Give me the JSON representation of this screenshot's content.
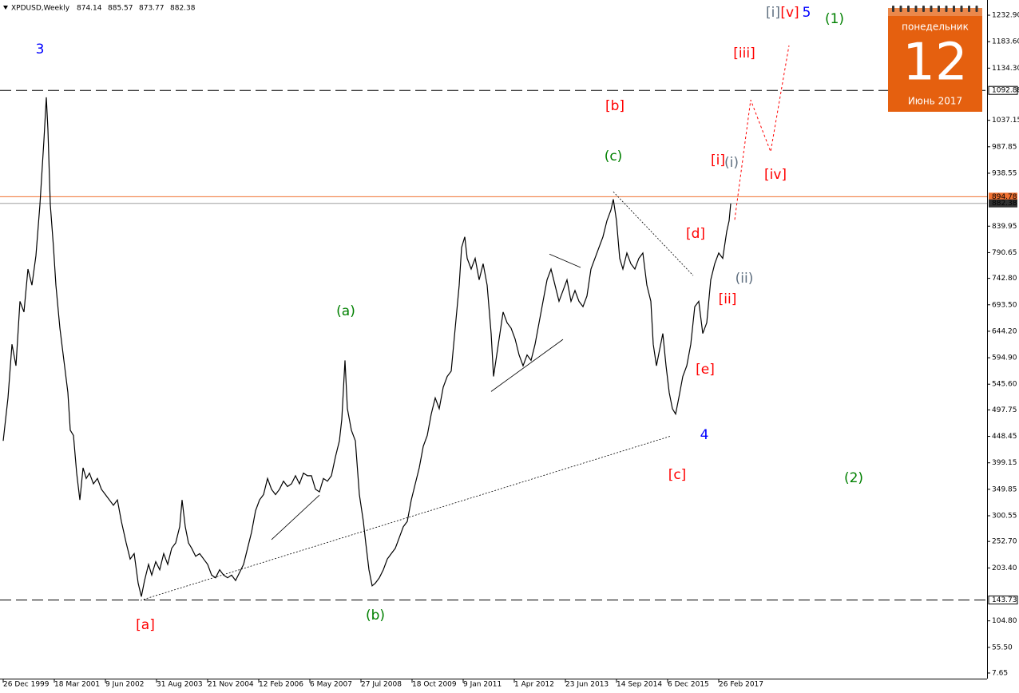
{
  "chart_data": {
    "type": "line",
    "title": "XPDUSD,Weekly",
    "quote": [
      874.14,
      885.57,
      873.77,
      882.38
    ],
    "xlim": [
      -4,
      1232
    ],
    "ylim": [
      -2.8,
      1261.2
    ],
    "xticks": [
      {
        "value": 0,
        "label": "26 Dec 1999"
      },
      {
        "value": 64,
        "label": "18 Mar 2001"
      },
      {
        "value": 128,
        "label": "9 Jun 2002"
      },
      {
        "value": 192,
        "label": "31 Aug 2003"
      },
      {
        "value": 256,
        "label": "21 Nov 2004"
      },
      {
        "value": 320,
        "label": "12 Feb 2006"
      },
      {
        "value": 384,
        "label": "6 May 2007"
      },
      {
        "value": 448,
        "label": "27 Jul 2008"
      },
      {
        "value": 512,
        "label": "18 Oct 2009"
      },
      {
        "value": 576,
        "label": "9 Jan 2011"
      },
      {
        "value": 640,
        "label": "1 Apr 2012"
      },
      {
        "value": 704,
        "label": "23 Jun 2013"
      },
      {
        "value": 768,
        "label": "14 Sep 2014"
      },
      {
        "value": 832,
        "label": "6 Dec 2015"
      },
      {
        "value": 896,
        "label": "26 Feb 2017"
      }
    ],
    "yticks": [
      {
        "value": 1232.9,
        "label": "1232.90"
      },
      {
        "value": 1183.6,
        "label": "1183.60"
      },
      {
        "value": 1134.3,
        "label": "1134.30"
      },
      1037.15,
      987.85,
      938.55,
      839.95,
      790.65,
      {
        "value": 742.8,
        "label": "742.80"
      },
      {
        "value": 693.5,
        "label": "693.50"
      },
      {
        "value": 644.2,
        "label": "644.20"
      },
      {
        "value": 594.9,
        "label": "594.90"
      },
      {
        "value": 545.6,
        "label": "545.60"
      },
      497.75,
      448.45,
      399.15,
      349.85,
      300.55,
      {
        "value": 252.7,
        "label": "252.70"
      },
      {
        "value": 203.4,
        "label": "203.40"
      },
      {
        "value": 104.8,
        "label": "104.80"
      },
      {
        "value": 55.5,
        "label": "55.50"
      },
      7.65
    ],
    "series": [
      {
        "color": "#000000",
        "x": [
          0,
          6,
          11,
          16,
          21,
          26,
          31,
          36,
          41,
          46,
          51,
          54,
          56,
          59,
          63,
          66,
          71,
          76,
          81,
          84,
          88,
          92,
          96,
          100,
          104,
          108,
          113,
          118,
          123,
          128,
          133,
          138,
          143,
          148,
          154,
          159,
          164,
          169,
          173,
          177,
          182,
          186,
          191,
          196,
          201,
          206,
          211,
          216,
          221,
          224,
          228,
          232,
          236,
          241,
          246,
          251,
          256,
          261,
          266,
          271,
          276,
          281,
          286,
          291,
          296,
          301,
          306,
          311,
          316,
          321,
          326,
          331,
          336,
          341,
          346,
          351,
          356,
          361,
          366,
          371,
          376,
          381,
          386,
          391,
          396,
          401,
          406,
          411,
          416,
          421,
          424,
          428,
          431,
          436,
          441,
          446,
          451,
          454,
          458,
          462,
          466,
          471,
          476,
          481,
          486,
          491,
          496,
          501,
          506,
          511,
          516,
          521,
          526,
          531,
          536,
          541,
          546,
          551,
          556,
          561,
          566,
          571,
          574,
          578,
          581,
          586,
          591,
          596,
          601,
          606,
          611,
          614,
          618,
          622,
          626,
          631,
          636,
          641,
          646,
          651,
          656,
          661,
          666,
          671,
          676,
          681,
          686,
          691,
          696,
          701,
          706,
          711,
          716,
          721,
          726,
          731,
          736,
          741,
          746,
          751,
          756,
          761,
          764,
          768,
          772,
          776,
          781,
          786,
          791,
          796,
          801,
          806,
          811,
          814,
          818,
          822,
          826,
          830,
          834,
          838,
          842,
          846,
          851,
          856,
          861,
          866,
          871,
          876,
          881,
          886,
          891,
          896,
          901,
          906,
          909,
          911
        ],
        "values": [
          440,
          520,
          620,
          580,
          700,
          680,
          760,
          730,
          785,
          880,
          1000,
          1080,
          1020,
          880,
          800,
          730,
          650,
          590,
          530,
          460,
          450,
          380,
          330,
          390,
          370,
          380,
          360,
          370,
          350,
          340,
          330,
          320,
          330,
          290,
          250,
          220,
          230,
          175,
          150,
          180,
          210,
          190,
          215,
          200,
          230,
          210,
          240,
          250,
          280,
          330,
          280,
          250,
          240,
          225,
          230,
          220,
          210,
          190,
          185,
          200,
          190,
          185,
          190,
          180,
          195,
          210,
          240,
          270,
          310,
          330,
          340,
          370,
          350,
          340,
          350,
          365,
          355,
          360,
          375,
          360,
          380,
          375,
          375,
          350,
          345,
          370,
          365,
          375,
          410,
          440,
          480,
          590,
          500,
          460,
          440,
          340,
          290,
          250,
          200,
          170,
          175,
          185,
          200,
          220,
          230,
          240,
          260,
          280,
          290,
          330,
          360,
          390,
          430,
          450,
          490,
          520,
          500,
          540,
          560,
          570,
          650,
          730,
          800,
          820,
          780,
          760,
          780,
          740,
          770,
          730,
          640,
          560,
          600,
          640,
          680,
          660,
          650,
          630,
          600,
          580,
          600,
          590,
          620,
          660,
          700,
          740,
          760,
          730,
          700,
          720,
          740,
          700,
          720,
          700,
          690,
          710,
          760,
          780,
          800,
          820,
          850,
          870,
          890,
          850,
          780,
          760,
          790,
          770,
          760,
          780,
          790,
          730,
          700,
          620,
          580,
          610,
          640,
          580,
          530,
          500,
          490,
          520,
          560,
          580,
          620,
          690,
          700,
          640,
          660,
          740,
          770,
          790,
          780,
          830,
          850,
          882
        ]
      },
      {
        "color": "#ff0000",
        "dashed": true,
        "x": [
          916,
          936,
          961,
          984
        ],
        "values": [
          852,
          1075,
          978.6,
          1176.4
        ]
      }
    ],
    "levels": [
      {
        "value": 1092.88,
        "color": "#000000",
        "style": "dashed"
      },
      {
        "value": 894.78,
        "color": "#f07030",
        "style": "solid"
      },
      {
        "value": 882.38,
        "color": "#a0a0a0",
        "style": "solid"
      },
      {
        "value": 143.73,
        "color": "#000000",
        "style": "dashed"
      }
    ],
    "trendlines": [
      {
        "x": [
          172,
          836
        ],
        "values": [
          143,
          449
        ],
        "style": "dotted"
      },
      {
        "x": [
          764,
          864
        ],
        "values": [
          904,
          748
        ],
        "style": "dotted"
      },
      {
        "x": [
          336,
          396
        ],
        "values": [
          256,
          339
        ],
        "style": "solid"
      },
      {
        "x": [
          611,
          701
        ],
        "values": [
          532,
          629
        ],
        "style": "solid"
      },
      {
        "x": [
          684,
          723
        ],
        "values": [
          788,
          763
        ],
        "style": "solid"
      }
    ],
    "wave_labels": [
      {
        "text": "3",
        "color": "#0000ff"
      },
      {
        "text": "[a]",
        "color": "#ff0000"
      },
      {
        "text": "(a)",
        "color": "#008000"
      },
      {
        "text": "(b)",
        "color": "#008000"
      },
      {
        "text": "[b]",
        "color": "#ff0000"
      },
      {
        "text": "(c)",
        "color": "#008000"
      },
      {
        "text": "[c]",
        "color": "#ff0000"
      },
      {
        "text": "4",
        "color": "#0000ff"
      },
      {
        "text": "[d]",
        "color": "#ff0000"
      },
      {
        "text": "[e]",
        "color": "#ff0000"
      },
      {
        "text": "[i]",
        "color": "#ff0000"
      },
      {
        "text": "(i)",
        "color": "#607080"
      },
      {
        "text": "(ii)",
        "color": "#607080"
      },
      {
        "text": "[ii]",
        "color": "#ff0000"
      },
      {
        "text": "[iii]",
        "color": "#ff0000"
      },
      {
        "text": "[iv]",
        "color": "#ff0000"
      },
      {
        "text": "[i]",
        "color": "#607080"
      },
      {
        "text": "[v]",
        "color": "#ff0000"
      },
      {
        "text": "5",
        "color": "#0000ff"
      },
      {
        "text": "(1)",
        "color": "#008000"
      },
      {
        "text": "(2)",
        "color": "#008000"
      }
    ],
    "calendar": {
      "weekday": "понедельник",
      "day": "12",
      "month": "Июнь 2017"
    }
  }
}
